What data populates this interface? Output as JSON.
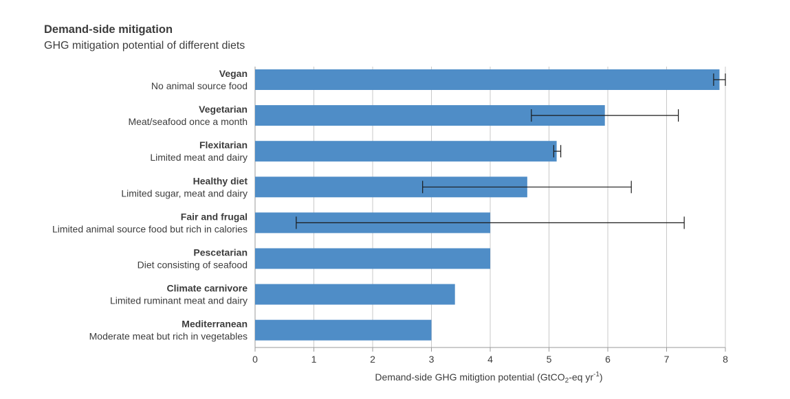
{
  "header": {
    "title": "Demand-side mitigation",
    "subtitle": "GHG mitigation potential of different diets"
  },
  "chart_data": {
    "type": "bar",
    "orientation": "horizontal",
    "xlabel_main": "Demand-side GHG mitigtion potential (GtCO",
    "xlabel_sub": "2",
    "xlabel_mid": "-eq yr",
    "xlabel_sup": "-1",
    "xlabel_end": ")",
    "xlim": [
      0,
      8
    ],
    "xticks": [
      0,
      1,
      2,
      3,
      4,
      5,
      6,
      7,
      8
    ],
    "grid": true,
    "bar_color": "#4f8dc7",
    "gridline_color": "#c8c8c8",
    "error_color": "#1a1a1a",
    "categories": [
      {
        "name": "Vegan",
        "desc": "No animal source food",
        "value": 7.9,
        "err_low": 7.8,
        "err_high": 8.0
      },
      {
        "name": "Vegetarian",
        "desc": "Meat/seafood once a month",
        "value": 5.95,
        "err_low": 4.7,
        "err_high": 7.2
      },
      {
        "name": "Flexitarian",
        "desc": "Limited meat and dairy",
        "value": 5.13,
        "err_low": 5.08,
        "err_high": 5.2
      },
      {
        "name": "Healthy diet",
        "desc": "Limited sugar, meat and dairy",
        "value": 4.63,
        "err_low": 2.85,
        "err_high": 6.4
      },
      {
        "name": "Fair and frugal",
        "desc": "Limited animal source food but rich in calories",
        "value": 4.0,
        "err_low": 0.7,
        "err_high": 7.3
      },
      {
        "name": "Pescetarian",
        "desc": "Diet consisting of seafood",
        "value": 4.0,
        "err_low": null,
        "err_high": null
      },
      {
        "name": "Climate carnivore",
        "desc": "Limited ruminant meat and dairy",
        "value": 3.4,
        "err_low": null,
        "err_high": null
      },
      {
        "name": "Mediterranean",
        "desc": "Moderate meat but rich in vegetables",
        "value": 3.0,
        "err_low": null,
        "err_high": null
      }
    ]
  }
}
